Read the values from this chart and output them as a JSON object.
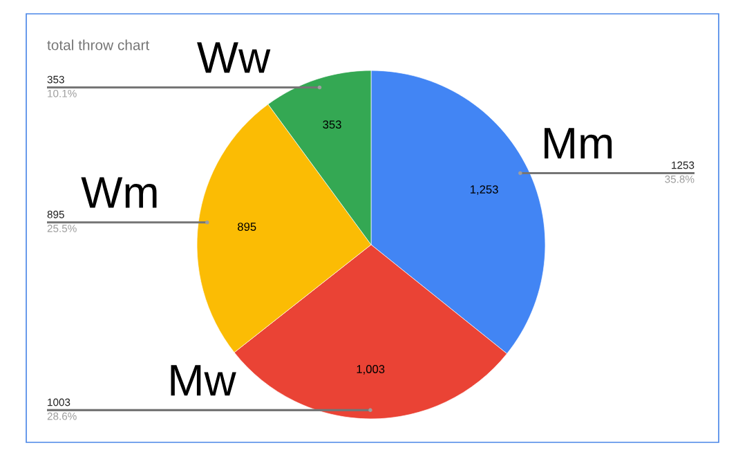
{
  "chart_data": {
    "type": "pie",
    "title": "total throw chart",
    "categories": [
      "Mm",
      "Mw",
      "Wm",
      "Ww"
    ],
    "values": [
      1253,
      1003,
      895,
      353
    ],
    "colors": [
      "#4285f4",
      "#ea4335",
      "#fbbc04",
      "#34a853"
    ],
    "value_labels": [
      "1,253",
      "1,003",
      "895",
      "353"
    ],
    "annotations": [
      {
        "text": "1253",
        "x": "Mm"
      },
      {
        "text": "35.8%",
        "x": "Mm"
      },
      {
        "text": "1003",
        "x": "Mw"
      },
      {
        "text": "28.6%",
        "x": "Mw"
      },
      {
        "text": "895",
        "x": "Wm"
      },
      {
        "text": "25.5%",
        "x": "Wm"
      },
      {
        "text": "353",
        "x": "Ww"
      },
      {
        "text": "10.1%",
        "x": "Ww"
      }
    ],
    "legend": false
  }
}
